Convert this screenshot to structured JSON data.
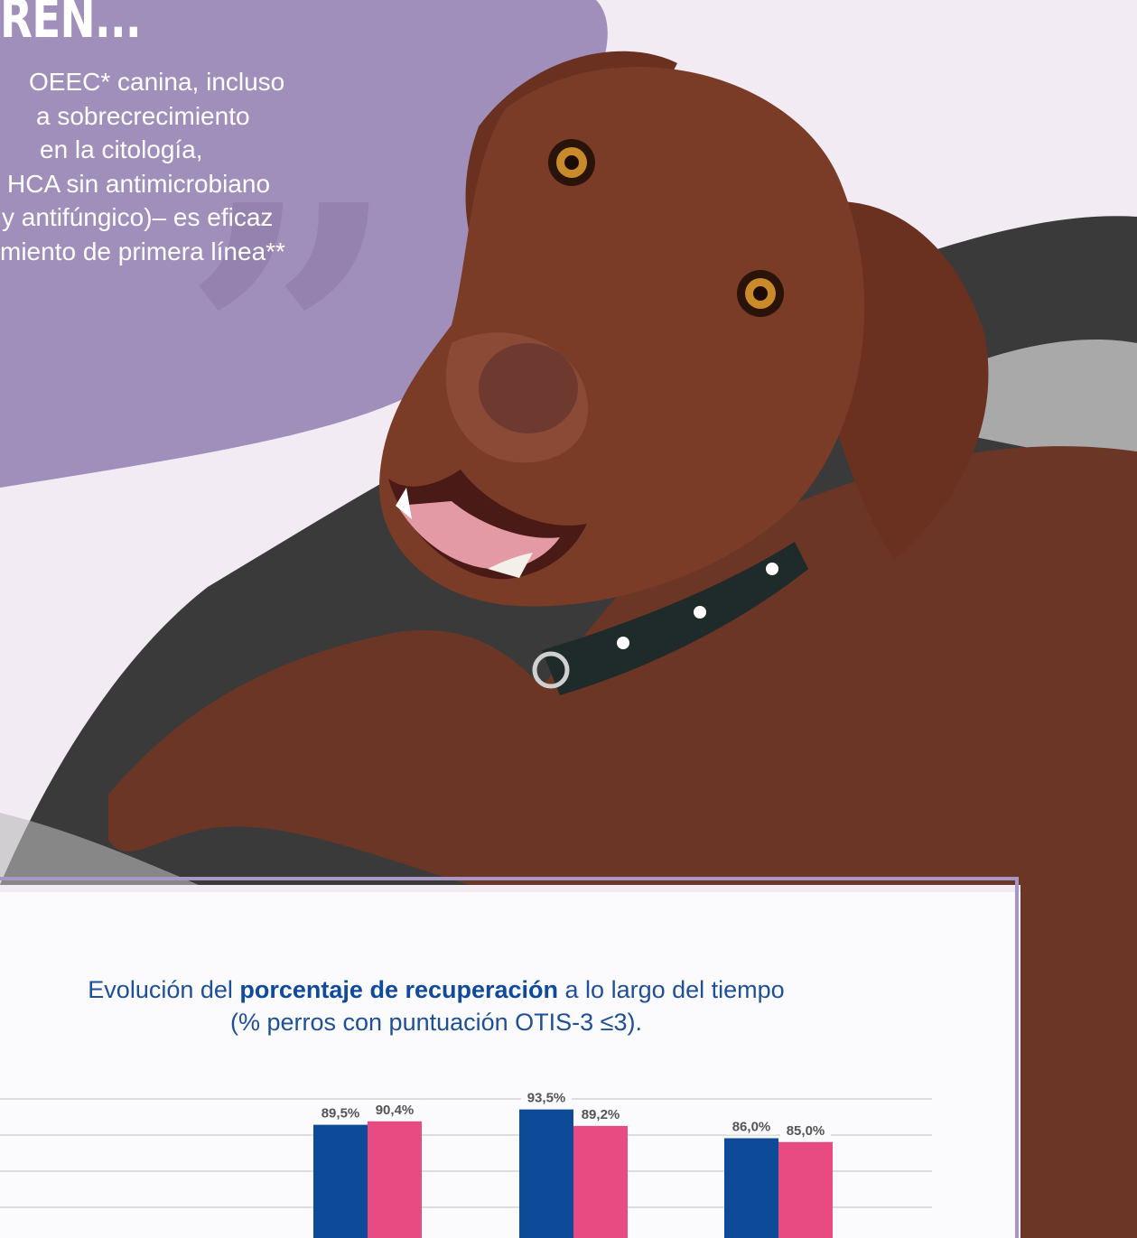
{
  "header": {
    "title": "REN..."
  },
  "quote": {
    "lines": [
      "OEEC* canina, incluso",
      "a sobrecrecimiento",
      "en la citología,",
      "HCA sin antimicrobiano",
      "y antifúngico)– es eficaz",
      "miento de primera línea**"
    ]
  },
  "chart_section": {
    "title_part1": "Evolución del ",
    "title_bold": "porcentaje de recuperación",
    "title_part2": " a lo largo del tiempo",
    "title_line2": "(% perros con puntuación OTIS-3 ≤3)."
  },
  "colors": {
    "background": "#f3ebf3",
    "purple_blob": "#a08fbb",
    "frame_border": "#a897c4",
    "panel": "#fbfafc",
    "series_blue": "#0d4a97",
    "series_pink": "#e84a82",
    "grid": "#dddddd",
    "label": "#555555"
  },
  "chart_data": {
    "type": "bar",
    "categories": [
      "",
      "",
      ""
    ],
    "series": [
      {
        "name": "",
        "color": "#0d4a97",
        "values": [
          89.5,
          93.5,
          86.0
        ],
        "labels": [
          "89,5%",
          "93,5%",
          "86,0%"
        ]
      },
      {
        "name": "",
        "color": "#e84a82",
        "values": [
          90.4,
          89.2,
          85.0
        ],
        "labels": [
          "90,4%",
          "89,2%",
          "85,0%"
        ]
      }
    ],
    "grid": true,
    "legend": "none"
  }
}
